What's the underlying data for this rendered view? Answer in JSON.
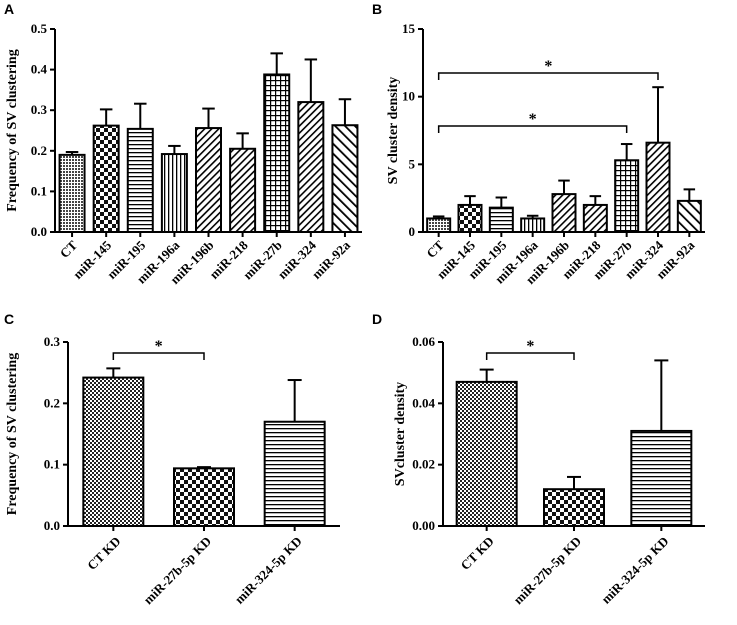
{
  "figure": {
    "panels": [
      "A",
      "B",
      "C",
      "D"
    ]
  },
  "chart_data": [
    {
      "panel": "A",
      "type": "bar",
      "title": "",
      "xlabel": "",
      "ylabel": "Frequency of SV clustering",
      "ylim": [
        0,
        0.5
      ],
      "yticks": [
        0.0,
        0.1,
        0.2,
        0.3,
        0.4,
        0.5
      ],
      "ytick_labels": [
        "0.0",
        "0.1",
        "0.2",
        "0.3",
        "0.4",
        "0.5"
      ],
      "categories": [
        "CT",
        "miR-145",
        "miR-195",
        "miR-196a",
        "miR-196b",
        "miR-218",
        "miR-27b",
        "miR-324",
        "miR-92a"
      ],
      "values": [
        0.19,
        0.262,
        0.254,
        0.192,
        0.256,
        0.205,
        0.388,
        0.32,
        0.263
      ],
      "errors": [
        0.007,
        0.04,
        0.062,
        0.02,
        0.048,
        0.038,
        0.052,
        0.105,
        0.064
      ],
      "patterns": [
        "dots",
        "checker",
        "hlines",
        "vlines",
        "diag",
        "diag",
        "grid",
        "diag",
        "diag-back"
      ],
      "significance": []
    },
    {
      "panel": "B",
      "type": "bar",
      "title": "",
      "xlabel": "",
      "ylabel": "SV cluster density",
      "ylim": [
        0,
        15
      ],
      "yticks": [
        0,
        5,
        10,
        15
      ],
      "ytick_labels": [
        "0",
        "5",
        "10",
        "15"
      ],
      "categories": [
        "CT",
        "miR-145",
        "miR-195",
        "miR-196a",
        "miR-196b",
        "miR-218",
        "miR-27b",
        "miR-324",
        "miR-92a"
      ],
      "values": [
        1.0,
        2.0,
        1.8,
        1.0,
        2.8,
        2.0,
        5.3,
        6.6,
        2.3
      ],
      "errors": [
        0.15,
        0.65,
        0.75,
        0.2,
        1.0,
        0.65,
        1.2,
        4.1,
        0.85
      ],
      "patterns": [
        "dots",
        "checker",
        "hlines",
        "vlines",
        "diag",
        "diag",
        "grid",
        "diag",
        "diag-back"
      ],
      "significance": [
        {
          "from": 0,
          "to": 7,
          "label": "*"
        },
        {
          "from": 0,
          "to": 6,
          "label": "*"
        }
      ]
    },
    {
      "panel": "C",
      "type": "bar",
      "title": "",
      "xlabel": "",
      "ylabel": "Frequency of SV clustering",
      "ylim": [
        0,
        0.3
      ],
      "yticks": [
        0.0,
        0.1,
        0.2,
        0.3
      ],
      "ytick_labels": [
        "0.0",
        "0.1",
        "0.2",
        "0.3"
      ],
      "categories": [
        "CT KD",
        "miR-27b-5p KD",
        "miR-324-5p KD"
      ],
      "values": [
        0.242,
        0.094,
        0.17
      ],
      "errors": [
        0.015,
        0.002,
        0.068
      ],
      "patterns": [
        "fine-checker",
        "checker",
        "hlines"
      ],
      "significance": [
        {
          "from": 0,
          "to": 1,
          "label": "*"
        }
      ]
    },
    {
      "panel": "D",
      "type": "bar",
      "title": "",
      "xlabel": "",
      "ylabel": "SVcluster density",
      "ylim": [
        0,
        0.06
      ],
      "yticks": [
        0.0,
        0.02,
        0.04,
        0.06
      ],
      "ytick_labels": [
        "0.00",
        "0.02",
        "0.04",
        "0.06"
      ],
      "categories": [
        "CT KD",
        "miR-27b-5p KD",
        "miR-324-5p KD"
      ],
      "values": [
        0.047,
        0.012,
        0.031
      ],
      "errors": [
        0.004,
        0.004,
        0.023
      ],
      "patterns": [
        "fine-checker",
        "checker",
        "hlines"
      ],
      "significance": [
        {
          "from": 0,
          "to": 1,
          "label": "*"
        }
      ]
    }
  ]
}
